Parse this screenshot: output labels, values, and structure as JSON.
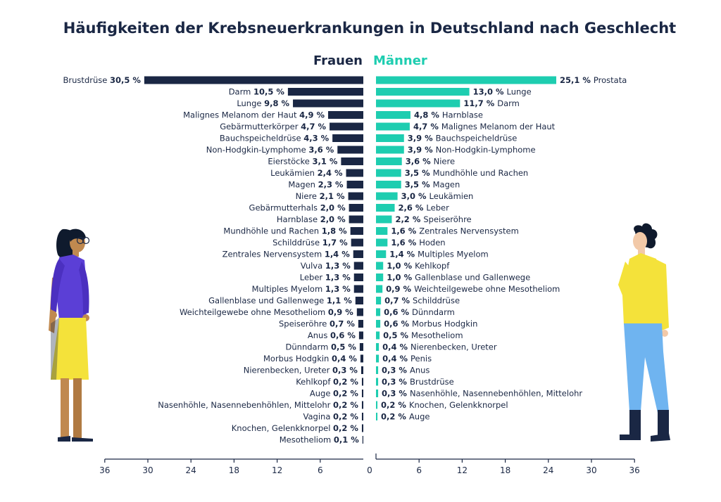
{
  "chart_data": {
    "type": "bar",
    "orientation": "horizontal-butterfly",
    "title": "Häufigkeiten der Krebsneuerkrankungen in Deutschland nach Geschlecht",
    "xlim": [
      0,
      36
    ],
    "xticks": [
      "36",
      "30",
      "24",
      "18",
      "12",
      "6",
      "0",
      "6",
      "12",
      "18",
      "24",
      "30",
      "36"
    ],
    "colors": {
      "frauen": "#1a2744",
      "maenner": "#1ecdb0"
    },
    "series": [
      {
        "name": "Frauen",
        "side": "left",
        "categories": [
          "Brustdrüse",
          "Darm",
          "Lunge",
          "Malignes Melanom der Haut",
          "Gebärmutterkörper",
          "Bauchspeicheldrüse",
          "Non-Hodgkin-Lymphome",
          "Eierstöcke",
          "Leukämien",
          "Magen",
          "Niere",
          "Gebärmutterhals",
          "Harnblase",
          "Mundhöhle und Rachen",
          "Schilddrüse",
          "Zentrales Nervensystem",
          "Vulva",
          "Leber",
          "Multiples Myelom",
          "Gallenblase und Gallenwege",
          "Weichteilgewebe ohne Mesotheliom",
          "Speiseröhre",
          "Anus",
          "Dünndarm",
          "Morbus Hodgkin",
          "Nierenbecken, Ureter",
          "Kehlkopf",
          "Auge",
          "Nasenhöhle, Nasennebenhöhlen, Mittelohr",
          "Vagina",
          "Knochen, Gelenkknorpel",
          "Mesotheliom"
        ],
        "values": [
          30.5,
          10.5,
          9.8,
          4.9,
          4.7,
          4.3,
          3.6,
          3.1,
          2.4,
          2.3,
          2.1,
          2.0,
          2.0,
          1.8,
          1.7,
          1.4,
          1.3,
          1.3,
          1.3,
          1.1,
          0.9,
          0.7,
          0.6,
          0.5,
          0.4,
          0.3,
          0.2,
          0.2,
          0.2,
          0.2,
          0.2,
          0.1
        ],
        "labels": [
          "30,5 %",
          "10,5 %",
          "9,8 %",
          "4,9 %",
          "4,7 %",
          "4,3 %",
          "3,6 %",
          "3,1 %",
          "2,4 %",
          "2,3 %",
          "2,1 %",
          "2,0 %",
          "2,0 %",
          "1,8 %",
          "1,7 %",
          "1,4 %",
          "1,3 %",
          "1,3 %",
          "1,3 %",
          "1,1 %",
          "0,9 %",
          "0,7 %",
          "0,6 %",
          "0,5 %",
          "0,4 %",
          "0,3 %",
          "0,2 %",
          "0,2 %",
          "0,2 %",
          "0,2 %",
          "0,2 %",
          "0,1 %"
        ]
      },
      {
        "name": "Männer",
        "side": "right",
        "categories": [
          "Prostata",
          "Lunge",
          "Darm",
          "Harnblase",
          "Malignes Melanom der Haut",
          "Bauchspeicheldrüse",
          "Non-Hodgkin-Lymphome",
          "Niere",
          "Mundhöhle und Rachen",
          "Magen",
          "Leukämien",
          "Leber",
          "Speiseröhre",
          "Zentrales Nervensystem",
          "Hoden",
          "Multiples Myelom",
          "Kehlkopf",
          "Gallenblase und Gallenwege",
          "Weichteilgewebe ohne Mesotheliom",
          "Schilddrüse",
          "Dünndarm",
          "Morbus Hodgkin",
          "Mesotheliom",
          "Nierenbecken, Ureter",
          "Penis",
          "Anus",
          "Brustdrüse",
          "Nasenhöhle, Nasennebenhöhlen, Mittelohr",
          "Knochen, Gelenkknorpel",
          "Auge"
        ],
        "values": [
          25.1,
          13.0,
          11.7,
          4.8,
          4.7,
          3.9,
          3.9,
          3.6,
          3.5,
          3.5,
          3.0,
          2.6,
          2.2,
          1.6,
          1.6,
          1.4,
          1.0,
          1.0,
          0.9,
          0.7,
          0.6,
          0.6,
          0.5,
          0.4,
          0.4,
          0.3,
          0.3,
          0.3,
          0.2,
          0.2
        ],
        "labels": [
          "25,1 %",
          "13,0 %",
          "11,7 %",
          "4,8 %",
          "4,7 %",
          "3,9 %",
          "3,9 %",
          "3,6 %",
          "3,5 %",
          "3,5 %",
          "3,0 %",
          "2,6 %",
          "2,2 %",
          "1,6 %",
          "1,6 %",
          "1,4 %",
          "1,0 %",
          "1,0 %",
          "0,9 %",
          "0,7 %",
          "0,6 %",
          "0,6 %",
          "0,5 %",
          "0,4 %",
          "0,4 %",
          "0,3 %",
          "0,3 %",
          "0,3 %",
          "0,2 %",
          "0,2 %"
        ]
      }
    ]
  }
}
